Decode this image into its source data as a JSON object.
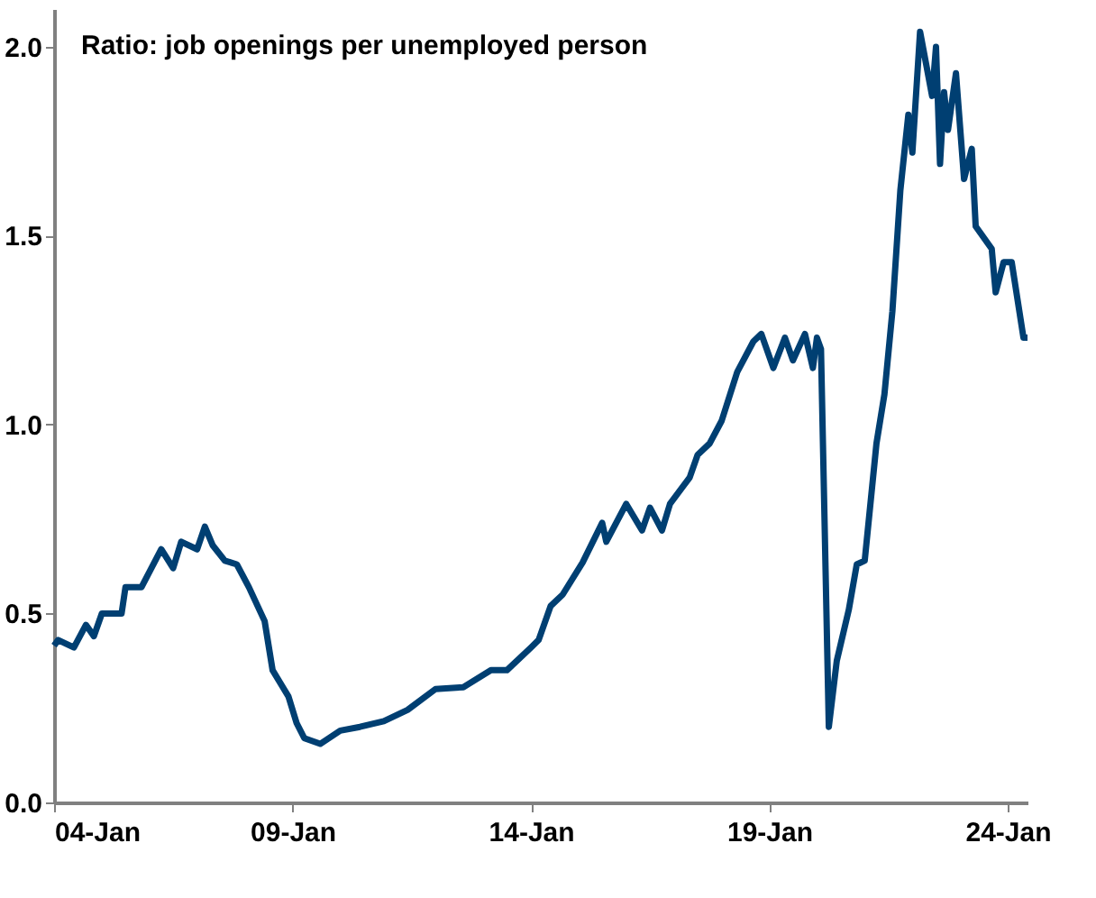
{
  "chart_data": {
    "type": "line",
    "title": "Ratio: job openings per unemployed person",
    "x": [
      "2004-01",
      "2004-02",
      "2004-06",
      "2004-09",
      "2004-11",
      "2005-01",
      "2005-06",
      "2005-07",
      "2005-11",
      "2006-04",
      "2006-07",
      "2006-09",
      "2007-01",
      "2007-03",
      "2007-05",
      "2007-08",
      "2007-11",
      "2008-02",
      "2008-06",
      "2008-08",
      "2008-12",
      "2009-02",
      "2009-04",
      "2009-08",
      "2010-01",
      "2010-06",
      "2010-12",
      "2011-06",
      "2012-01",
      "2012-08",
      "2013-03",
      "2013-07",
      "2014-01",
      "2014-03",
      "2014-06",
      "2014-09",
      "2015-02",
      "2015-07",
      "2015-08",
      "2016-01",
      "2016-05",
      "2016-07",
      "2016-10",
      "2016-12",
      "2017-05",
      "2017-07",
      "2017-10",
      "2018-01",
      "2018-05",
      "2018-09",
      "2018-11",
      "2019-02",
      "2019-05",
      "2019-07",
      "2019-10",
      "2019-12",
      "2020-01",
      "2020-02",
      "2020-04",
      "2020-06",
      "2020-09",
      "2020-11",
      "2021-01",
      "2021-04",
      "2021-06",
      "2021-08",
      "2021-10",
      "2021-12",
      "2022-01",
      "2022-03",
      "2022-06",
      "2022-07",
      "2022-08",
      "2022-09",
      "2022-10",
      "2022-12",
      "2023-02",
      "2023-04",
      "2023-05",
      "2023-09",
      "2023-10",
      "2023-12",
      "2024-02",
      "2024-05",
      "2024-06"
    ],
    "series": [
      {
        "color": "#003f72",
        "values": [
          0.415,
          0.43,
          0.41,
          0.47,
          0.44,
          0.5,
          0.5,
          0.57,
          0.57,
          0.67,
          0.62,
          0.69,
          0.67,
          0.73,
          0.68,
          0.64,
          0.63,
          0.57,
          0.48,
          0.35,
          0.28,
          0.21,
          0.17,
          0.155,
          0.19,
          0.2,
          0.215,
          0.245,
          0.3,
          0.305,
          0.35,
          0.35,
          0.41,
          0.43,
          0.52,
          0.55,
          0.635,
          0.74,
          0.69,
          0.79,
          0.72,
          0.78,
          0.72,
          0.79,
          0.86,
          0.92,
          0.95,
          1.01,
          1.14,
          1.22,
          1.24,
          1.15,
          1.23,
          1.17,
          1.24,
          1.15,
          1.23,
          1.2,
          0.2,
          0.375,
          0.51,
          0.63,
          0.64,
          0.95,
          1.08,
          1.3,
          1.62,
          1.82,
          1.72,
          2.04,
          1.87,
          2.0,
          1.69,
          1.88,
          1.78,
          1.93,
          1.65,
          1.73,
          1.525,
          1.465,
          1.35,
          1.43,
          1.43,
          1.23,
          1.23
        ]
      }
    ],
    "xlim": [
      "2004-01",
      "2024-06"
    ],
    "xticks": [
      {
        "value": "2004-01",
        "label": "04-Jan"
      },
      {
        "value": "2009-01",
        "label": "09-Jan"
      },
      {
        "value": "2014-01",
        "label": "14-Jan"
      },
      {
        "value": "2019-01",
        "label": "19-Jan"
      },
      {
        "value": "2024-01",
        "label": "24-Jan"
      }
    ],
    "ylim": [
      0,
      2.1
    ],
    "yticks": [
      {
        "value": 0,
        "label": "0.0"
      },
      {
        "value": 0.5,
        "label": "0.5"
      },
      {
        "value": 1,
        "label": "1.0"
      },
      {
        "value": 1.5,
        "label": "1.5"
      },
      {
        "value": 2,
        "label": "2.0"
      }
    ],
    "grid": false,
    "legend": false,
    "marker": "none",
    "line_style": "solid"
  }
}
